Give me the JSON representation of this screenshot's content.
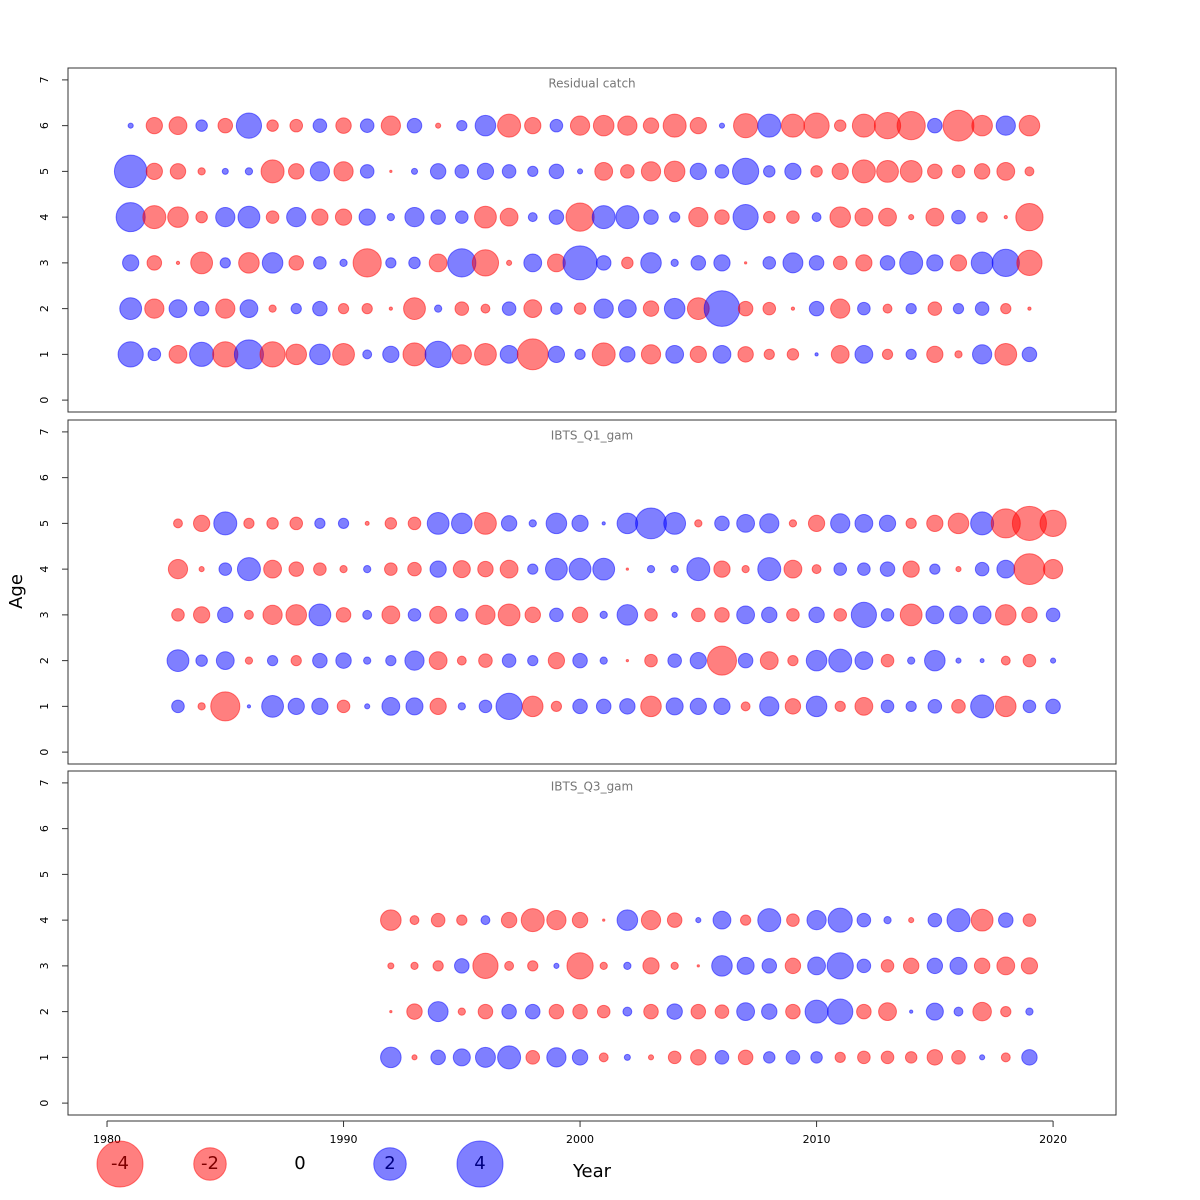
{
  "chart_data": [
    {
      "type": "bubble",
      "title": "Residual catch",
      "x": [
        1981,
        1982,
        1983,
        1984,
        1985,
        1986,
        1987,
        1988,
        1989,
        1990,
        1991,
        1992,
        1993,
        1994,
        1995,
        1996,
        1997,
        1998,
        1999,
        2000,
        2001,
        2002,
        2003,
        2004,
        2005,
        2006,
        2007,
        2008,
        2009,
        2010,
        2011,
        2012,
        2013,
        2014,
        2015,
        2016,
        2017,
        2018,
        2019
      ],
      "ages": [
        1,
        2,
        3,
        4,
        5,
        6
      ],
      "values": [
        [
          1.2,
          0.3,
          -0.6,
          1.1,
          -1.2,
          1.6,
          -1.2,
          -0.8,
          0.8,
          -0.9,
          0.15,
          0.5,
          -1.0,
          1.3,
          -0.7,
          -0.9,
          0.6,
          -1.8,
          0.5,
          0.2,
          -1.0,
          0.45,
          -0.7,
          0.6,
          -0.5,
          0.6,
          -0.45,
          -0.2,
          -0.25,
          0.02,
          -0.6,
          0.6,
          -0.2,
          0.2,
          -0.5,
          -0.1,
          0.7,
          -0.9,
          0.4
        ],
        [
          0.9,
          -0.7,
          0.6,
          0.4,
          -0.7,
          0.6,
          -0.1,
          0.2,
          0.4,
          -0.2,
          -0.2,
          -0.02,
          -0.9,
          0.1,
          -0.35,
          -0.15,
          0.35,
          -0.6,
          0.25,
          -0.25,
          0.7,
          0.6,
          -0.45,
          0.8,
          -0.9,
          2.4,
          -0.4,
          -0.3,
          -0.02,
          0.4,
          -0.7,
          0.3,
          -0.15,
          0.2,
          -0.35,
          0.2,
          0.35,
          -0.2,
          -0.02
        ],
        [
          0.5,
          -0.4,
          -0.02,
          -0.9,
          0.2,
          -0.8,
          0.8,
          -0.4,
          0.3,
          0.1,
          -1.5,
          0.2,
          0.25,
          -0.6,
          1.5,
          -1.3,
          -0.05,
          0.6,
          -0.6,
          2.2,
          0.4,
          -0.25,
          0.8,
          0.1,
          0.4,
          0.5,
          -0.01,
          0.3,
          0.75,
          0.4,
          -0.35,
          -0.5,
          0.4,
          1.0,
          0.5,
          -0.5,
          0.9,
          1.4,
          -1.2
        ],
        [
          1.6,
          -1.0,
          -0.8,
          -0.25,
          0.7,
          0.9,
          -0.3,
          0.7,
          -0.5,
          -0.5,
          0.5,
          0.1,
          0.7,
          0.4,
          0.3,
          -0.9,
          -0.6,
          0.15,
          0.4,
          -1.5,
          1.0,
          1.0,
          0.4,
          0.2,
          -0.7,
          -0.4,
          1.2,
          -0.25,
          -0.3,
          0.15,
          -0.8,
          -0.6,
          -0.6,
          -0.05,
          -0.6,
          0.35,
          -0.2,
          -0.02,
          -1.4
        ],
        [
          2.0,
          -0.5,
          -0.45,
          -0.1,
          0.07,
          0.1,
          -1.0,
          -0.45,
          0.7,
          -0.7,
          0.35,
          -0.01,
          0.07,
          0.45,
          0.35,
          0.5,
          0.35,
          0.2,
          0.4,
          0.05,
          -0.6,
          -0.35,
          -0.7,
          -0.8,
          0.5,
          0.35,
          1.3,
          0.25,
          0.5,
          -0.25,
          -0.5,
          -1.0,
          -0.9,
          -0.9,
          -0.4,
          -0.3,
          -0.45,
          -0.6,
          -0.15
        ],
        [
          0.05,
          -0.5,
          -0.6,
          0.25,
          -0.4,
          1.2,
          -0.25,
          -0.3,
          0.35,
          -0.45,
          0.35,
          -0.7,
          0.4,
          -0.05,
          0.2,
          0.8,
          -1.0,
          -0.5,
          0.3,
          -0.7,
          -0.8,
          -0.7,
          -0.45,
          -1.0,
          -0.5,
          0.05,
          -1.1,
          1.0,
          -1.0,
          -1.2,
          -0.25,
          -1.0,
          -1.3,
          -1.5,
          0.4,
          -1.8,
          -0.8,
          0.7,
          -0.8
        ]
      ],
      "xlim": [
        1978.35,
        2022.66
      ],
      "ylim": [
        -0.26,
        7.26
      ],
      "yticks": [
        0,
        1,
        2,
        3,
        4,
        5,
        6,
        7
      ],
      "positive_color": "#0000ff",
      "negative_color": "#ff0000",
      "opacity": 0.5
    },
    {
      "type": "bubble",
      "title": "IBTS_Q1_gam",
      "ylabel": "Age",
      "x": [
        1983,
        1984,
        1985,
        1986,
        1987,
        1988,
        1989,
        1990,
        1991,
        1992,
        1993,
        1994,
        1995,
        1996,
        1997,
        1998,
        1999,
        2000,
        2001,
        2002,
        2003,
        2004,
        2005,
        2006,
        2007,
        2008,
        2009,
        2010,
        2011,
        2012,
        2013,
        2014,
        2015,
        2016,
        2017,
        2018,
        2019,
        2020
      ],
      "ages": [
        1,
        2,
        3,
        4,
        5
      ],
      "values": [
        [
          0.3,
          -0.1,
          -1.6,
          0.02,
          0.9,
          0.5,
          0.5,
          -0.3,
          0.05,
          0.6,
          0.55,
          -0.5,
          0.1,
          0.3,
          1.3,
          -0.8,
          -0.2,
          0.4,
          0.4,
          0.45,
          -0.8,
          0.55,
          0.5,
          0.5,
          -0.15,
          0.7,
          -0.45,
          0.8,
          -0.2,
          -0.6,
          0.3,
          0.2,
          0.35,
          -0.35,
          1.0,
          -0.8,
          0.3,
          0.4
        ],
        [
          0.9,
          0.25,
          0.6,
          -0.1,
          0.2,
          -0.2,
          0.4,
          0.45,
          0.1,
          0.2,
          0.7,
          -0.6,
          -0.15,
          -0.35,
          0.35,
          0.2,
          -0.5,
          0.4,
          0.1,
          -0.01,
          -0.3,
          0.35,
          0.5,
          -1.6,
          0.4,
          -0.6,
          -0.2,
          0.8,
          1.0,
          0.6,
          -0.3,
          0.1,
          0.8,
          0.05,
          0.03,
          -0.15,
          -0.3,
          0.05
        ],
        [
          -0.3,
          -0.5,
          0.45,
          -0.15,
          -0.7,
          -0.8,
          0.9,
          -0.4,
          0.15,
          -0.6,
          0.3,
          -0.55,
          0.3,
          -0.7,
          -0.9,
          -0.45,
          0.35,
          -0.45,
          0.1,
          0.8,
          -0.3,
          0.05,
          -0.35,
          -0.4,
          0.6,
          0.45,
          -0.3,
          0.45,
          -0.3,
          1.2,
          0.3,
          -0.9,
          0.6,
          0.6,
          0.6,
          -0.8,
          -0.45,
          0.35
        ],
        [
          -0.7,
          -0.05,
          0.3,
          1.0,
          -0.6,
          -0.4,
          -0.3,
          -0.1,
          0.1,
          -0.3,
          -0.35,
          0.5,
          -0.55,
          -0.45,
          -0.6,
          0.2,
          0.9,
          0.9,
          0.9,
          -0.01,
          0.1,
          0.1,
          1.0,
          -0.5,
          -0.1,
          1.0,
          -0.6,
          -0.15,
          0.3,
          0.3,
          0.4,
          -0.5,
          0.2,
          -0.05,
          0.35,
          0.6,
          -1.8,
          -0.7
        ],
        [
          -0.15,
          -0.5,
          1.0,
          -0.2,
          -0.25,
          -0.3,
          0.2,
          0.2,
          -0.03,
          -0.25,
          -0.3,
          0.9,
          0.8,
          -0.9,
          0.45,
          0.1,
          0.8,
          0.5,
          0.02,
          0.8,
          1.8,
          0.9,
          -0.1,
          0.4,
          0.6,
          0.7,
          -0.1,
          -0.5,
          0.7,
          0.6,
          0.5,
          -0.2,
          -0.5,
          -0.8,
          1.0,
          -1.6,
          -2.2,
          -1.3
        ]
      ],
      "xlim": [
        1978.35,
        2022.66
      ],
      "ylim": [
        -0.26,
        7.26
      ],
      "yticks": [
        0,
        1,
        2,
        3,
        4,
        5,
        6,
        7
      ],
      "positive_color": "#0000ff",
      "negative_color": "#ff0000",
      "opacity": 0.5
    },
    {
      "type": "bubble",
      "title": "IBTS_Q3_gam",
      "xlabel": "Year",
      "x": [
        1992,
        1993,
        1994,
        1995,
        1996,
        1997,
        1998,
        1999,
        2000,
        2001,
        2002,
        2003,
        2004,
        2005,
        2006,
        2007,
        2008,
        2009,
        2010,
        2011,
        2012,
        2013,
        2014,
        2015,
        2016,
        2017,
        2018,
        2019
      ],
      "ages": [
        1,
        2,
        3,
        4
      ],
      "values": [
        [
          0.8,
          -0.05,
          0.4,
          0.55,
          0.75,
          1.0,
          -0.35,
          0.7,
          0.45,
          -0.15,
          0.07,
          -0.05,
          -0.3,
          -0.45,
          0.35,
          -0.4,
          0.25,
          0.35,
          0.25,
          -0.2,
          -0.3,
          -0.3,
          -0.25,
          -0.45,
          -0.35,
          0.05,
          -0.15,
          0.45
        ],
        [
          -0.01,
          -0.45,
          0.75,
          -0.1,
          -0.4,
          0.4,
          0.4,
          -0.4,
          -0.4,
          -0.3,
          0.15,
          -0.4,
          0.45,
          -0.4,
          -0.35,
          0.6,
          0.45,
          -0.4,
          1.0,
          1.2,
          -0.4,
          -0.6,
          0.02,
          0.55,
          0.15,
          -0.65,
          -0.2,
          0.1
        ],
        [
          -0.07,
          -0.1,
          -0.2,
          0.4,
          -1.2,
          -0.15,
          -0.2,
          0.05,
          -1.3,
          -0.1,
          0.1,
          -0.5,
          -0.1,
          -0.01,
          0.8,
          0.55,
          0.4,
          -0.45,
          0.6,
          1.3,
          0.35,
          -0.3,
          -0.45,
          0.45,
          0.55,
          -0.45,
          -0.6,
          -0.5
        ],
        [
          -0.8,
          -0.15,
          -0.35,
          -0.2,
          0.15,
          -0.45,
          -1.0,
          -0.7,
          -0.45,
          -0.01,
          0.8,
          -0.7,
          -0.4,
          0.05,
          0.6,
          -0.2,
          1.0,
          -0.3,
          0.7,
          1.1,
          0.35,
          0.1,
          -0.05,
          0.35,
          1.0,
          -0.9,
          0.4,
          -0.3
        ]
      ],
      "xlim": [
        1978.35,
        2022.66
      ],
      "ylim": [
        -0.26,
        7.26
      ],
      "yticks": [
        0,
        1,
        2,
        3,
        4,
        5,
        6,
        7
      ],
      "xticks": [
        1980,
        1990,
        2000,
        2010,
        2020
      ],
      "legend": [
        -4,
        -2,
        0,
        2,
        4
      ],
      "positive_color": "#0000ff",
      "negative_color": "#ff0000",
      "opacity": 0.5
    }
  ]
}
